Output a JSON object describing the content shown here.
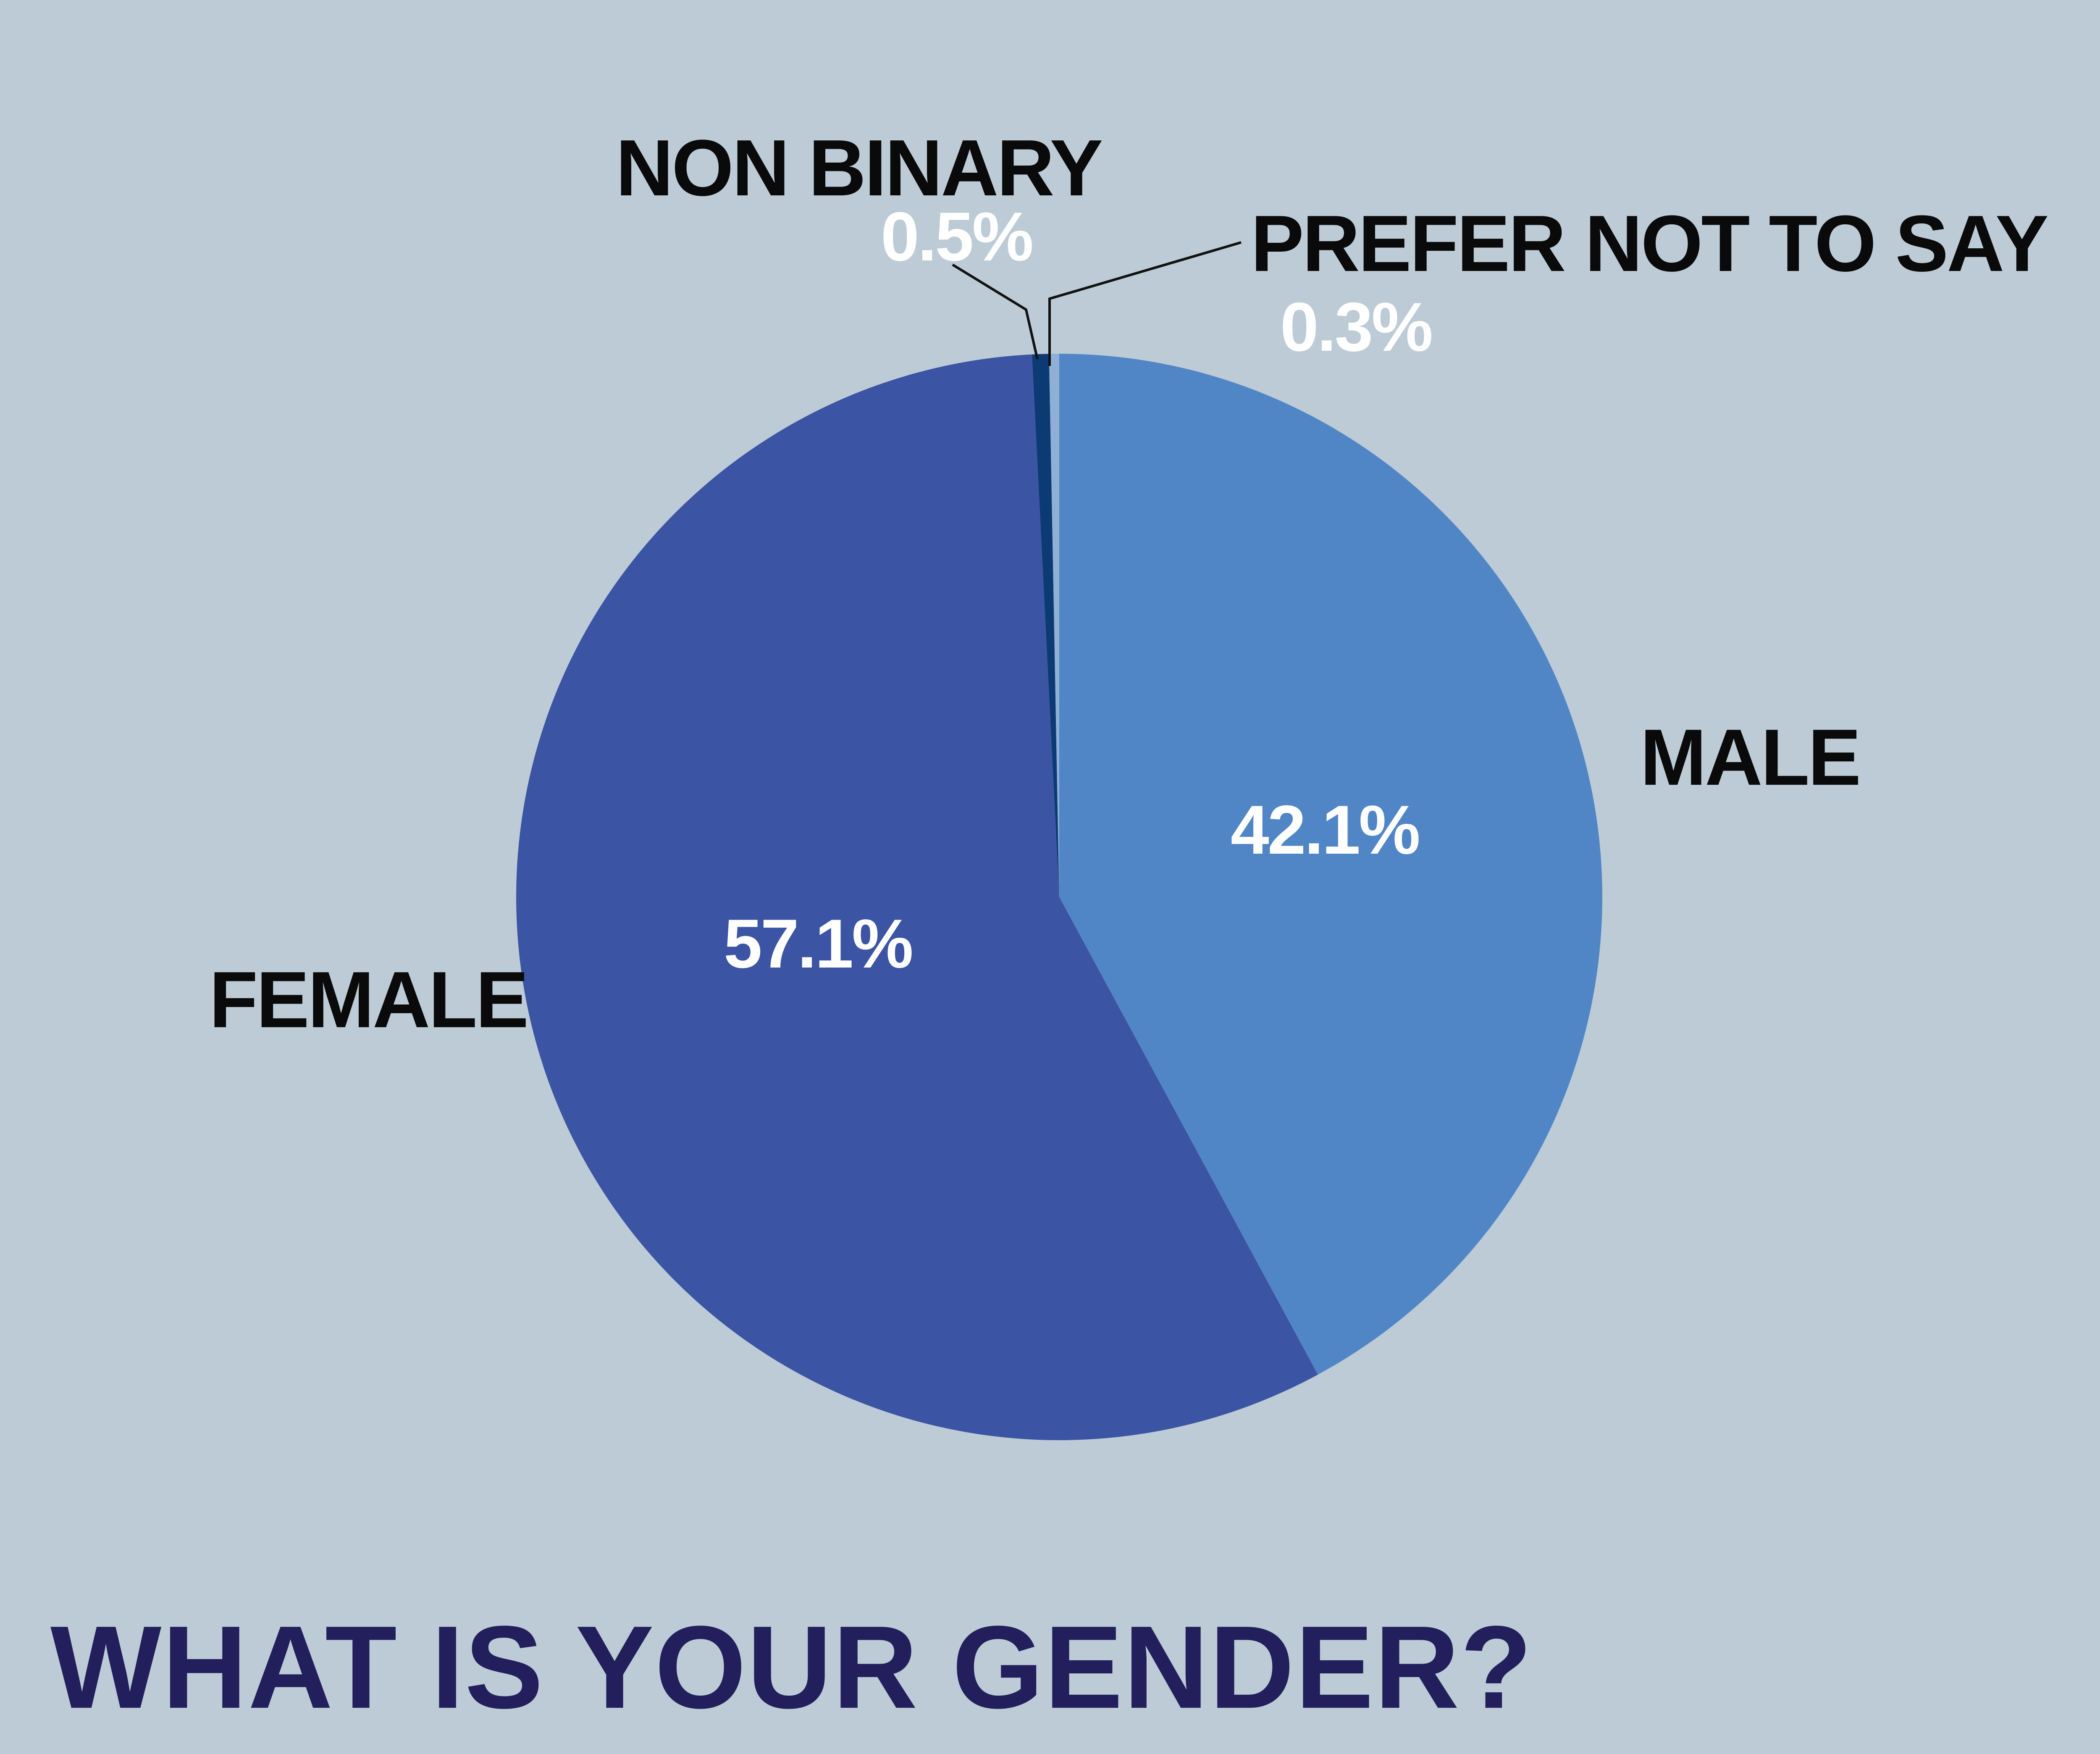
{
  "chart_data": {
    "type": "pie",
    "title": "WHAT IS YOUR GENDER?",
    "slices": [
      {
        "name": "MALE",
        "label": "42.1%",
        "value": 42.1,
        "color": "#5186c6"
      },
      {
        "name": "FEMALE",
        "label": "57.1%",
        "value": 57.1,
        "color": "#3b54a3"
      },
      {
        "name": "NON BINARY",
        "label": "0.5%",
        "value": 0.5,
        "color": "#0c3b73"
      },
      {
        "name": "PREFER NOT TO SAY",
        "label": "0.3%",
        "value": 0.3,
        "color": "#8fb0d6"
      }
    ],
    "start": "top, clockwise"
  },
  "colors": {
    "background": "#bccbd5",
    "title": "#221f5c",
    "category_text": "#0a0a0a",
    "percent_text": "#ffffff"
  }
}
